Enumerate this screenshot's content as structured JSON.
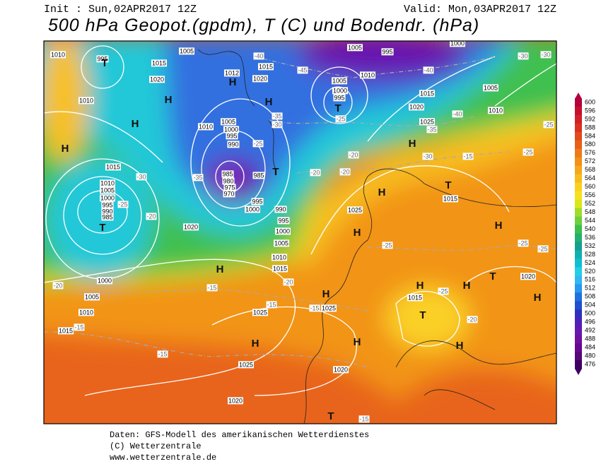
{
  "header": {
    "init": "Init : Sun,02APR2017 12Z",
    "valid": "Valid: Mon,03APR2017 12Z",
    "title": "500 hPa Geopot.(gpdm), T (C) und Bodendr. (hPa)"
  },
  "legend": {
    "labels": [
      600,
      596,
      592,
      588,
      584,
      580,
      576,
      572,
      568,
      564,
      560,
      556,
      552,
      548,
      544,
      540,
      536,
      532,
      528,
      524,
      520,
      516,
      512,
      508,
      504,
      500,
      496,
      492,
      488,
      484,
      480,
      476
    ],
    "colors": [
      "#b4003c",
      "#c8102e",
      "#d2202a",
      "#dc3020",
      "#e24a1a",
      "#e86018",
      "#ee7a16",
      "#f29018",
      "#f5a81c",
      "#f8bc1e",
      "#fbd020",
      "#f8e020",
      "#d8e818",
      "#a0dc28",
      "#6ed03a",
      "#3cc04c",
      "#22b070",
      "#14a090",
      "#10b0b0",
      "#10c0d0",
      "#20d0e8",
      "#30b8f0",
      "#2898f0",
      "#2070e0",
      "#2050d0",
      "#3030c0",
      "#5020b8",
      "#6818b0",
      "#7010a0",
      "#680890",
      "#580878",
      "#400060"
    ]
  },
  "map": {
    "pressure_labels": [
      "1010",
      "995",
      "1005",
      "1015",
      "1020",
      "1010",
      "1015",
      "1010",
      "1005",
      "1000",
      "995",
      "990",
      "985",
      "1020",
      "1000",
      "1005",
      "1010",
      "1015",
      "1025",
      "1025",
      "1020",
      "1020",
      "1025",
      "1025",
      "1015",
      "1015",
      "1020",
      "1005",
      "995",
      "1000",
      "1005",
      "1000",
      "995",
      "1010",
      "1015",
      "1020",
      "1025",
      "1005",
      "1010",
      "1012",
      "1020",
      "1015",
      "1010",
      "1005",
      "1000",
      "995",
      "990",
      "985",
      "980",
      "975",
      "970",
      "985",
      "995",
      "1000",
      "990",
      "995",
      "1000",
      "1005",
      "1010",
      "1015"
    ],
    "temperature_labels": [
      "-40",
      "-45",
      "-35",
      "-30",
      "-25",
      "-30",
      "-35",
      "-20",
      "-20",
      "-20",
      "-25",
      "-30",
      "-15",
      "-35",
      "-40",
      "-40",
      "-30",
      "-30",
      "-25",
      "-25",
      "-25",
      "-25",
      "-25",
      "-25",
      "-20",
      "-20",
      "-15",
      "-15",
      "-15",
      "-15",
      "-15",
      "-20",
      "-20",
      "-15",
      "-25"
    ],
    "centers": [
      "T",
      "H",
      "H",
      "H",
      "T",
      "H",
      "H",
      "T",
      "H",
      "H",
      "H",
      "H",
      "T",
      "T",
      "H",
      "H",
      "T",
      "H",
      "H",
      "H",
      "H",
      "T",
      "T",
      "H",
      "H"
    ]
  },
  "footer": {
    "lines": [
      "Daten: GFS-Modell des amerikanischen Wetterdienstes",
      "(C) Wetterzentrale",
      "www.wetterzentrale.de"
    ]
  }
}
